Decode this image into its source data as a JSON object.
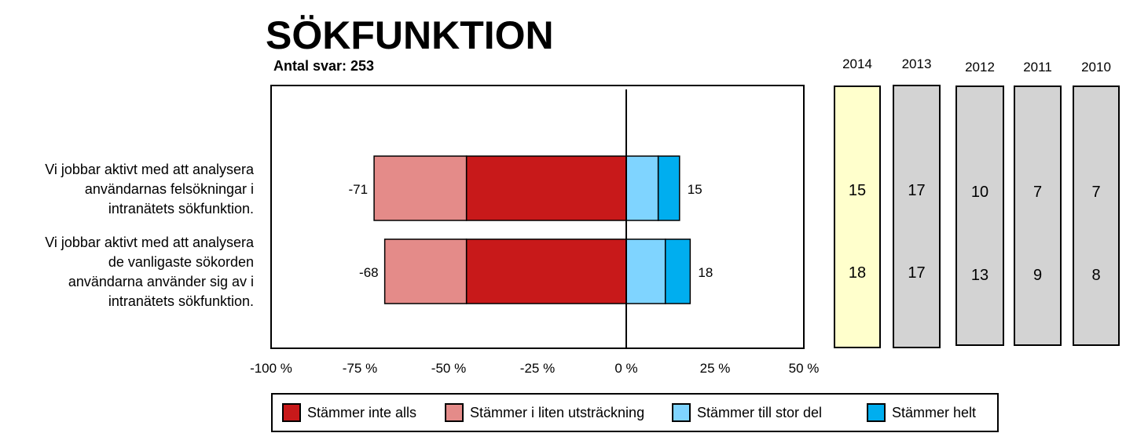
{
  "title": "SÖKFUNKTION",
  "subtitle": "Antal svar: 253",
  "questions": [
    {
      "lines": [
        "Vi jobbar aktivt med att analysera",
        "användarnas felsökningar i",
        "intranätets sökfunktion."
      ]
    },
    {
      "lines": [
        "Vi jobbar aktivt med att analysera",
        "de vanligaste sökorden",
        "användarna använder sig av i",
        "intranätets sökfunktion."
      ]
    }
  ],
  "chart_data": {
    "type": "bar",
    "orientation": "horizontal-diverging",
    "categories": [
      "Vi jobbar aktivt med att analysera användarnas felsökningar i intranätets sökfunktion.",
      "Vi jobbar aktivt med att analysera de vanligaste sökorden användarna använder sig av i intranätets sökfunktion."
    ],
    "series": [
      {
        "name": "Stämmer inte alls",
        "color": "#C8191A",
        "values": [
          -45,
          -45
        ]
      },
      {
        "name": "Stämmer i liten utsträckning",
        "color": "#E48B89",
        "values": [
          -26,
          -23
        ]
      },
      {
        "name": "Stämmer till stor del",
        "color": "#7FD4FF",
        "values": [
          9,
          11
        ]
      },
      {
        "name": "Stämmer helt",
        "color": "#00AEEF",
        "values": [
          6,
          7
        ]
      }
    ],
    "negative_totals": [
      "-71",
      "-68"
    ],
    "positive_totals": [
      "15",
      "18"
    ],
    "xlim": [
      -100,
      50
    ],
    "xticks": [
      -100,
      -75,
      -50,
      -25,
      0,
      25,
      50
    ],
    "xtick_labels": [
      "-100 %",
      "-75 %",
      "-50 %",
      "-25 %",
      "0 %",
      "25 %",
      "50 %"
    ],
    "legend_position": "bottom"
  },
  "years": [
    {
      "label": "2014",
      "values": [
        "15",
        "18"
      ],
      "color": "#FFFFCC"
    },
    {
      "label": "2013",
      "values": [
        "17",
        "17"
      ],
      "color": "#D3D3D3"
    },
    {
      "label": "2012",
      "values": [
        "10",
        "13"
      ],
      "color": "#D3D3D3"
    },
    {
      "label": "2011",
      "values": [
        "7",
        "9"
      ],
      "color": "#D3D3D3"
    },
    {
      "label": "2010",
      "values": [
        "7",
        "8"
      ],
      "color": "#D3D3D3"
    }
  ]
}
